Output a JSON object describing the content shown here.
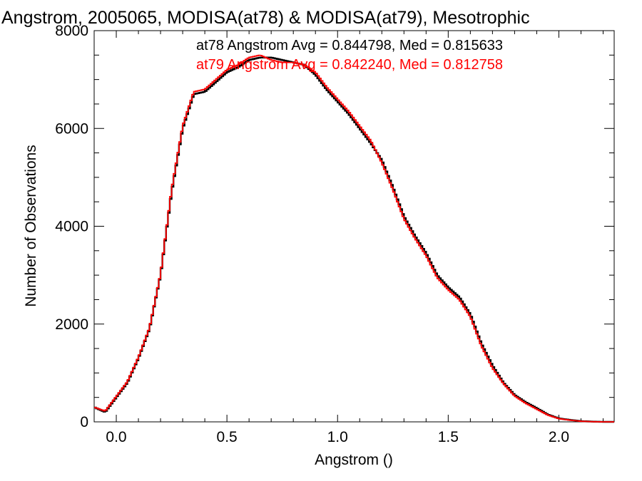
{
  "chart_data": {
    "type": "line",
    "title": "Angstrom, 2005065, MODISA(at78) & MODISA(at79), Mesotrophic",
    "xlabel": "Angstrom ()",
    "ylabel": "Number of Observations",
    "xlim": [
      -0.1,
      2.25
    ],
    "ylim": [
      0,
      8000
    ],
    "x_ticks": [
      0.0,
      0.5,
      1.0,
      1.5,
      2.0
    ],
    "x_tick_labels": [
      "0.0",
      "0.5",
      "1.0",
      "1.5",
      "2.0"
    ],
    "y_ticks": [
      0,
      2000,
      4000,
      6000,
      8000
    ],
    "y_tick_labels": [
      "0",
      "2000",
      "4000",
      "6000",
      "8000"
    ],
    "step": true,
    "grid": false,
    "annotations": [
      {
        "text": "at78 Angstrom Avg = 0.844798, Med = 0.815633",
        "color": "#000000"
      },
      {
        "text": "at79 Angstrom Avg = 0.842240, Med = 0.812758",
        "color": "#ff0000"
      }
    ],
    "series": [
      {
        "color": "#000000",
        "x": [
          -0.1,
          -0.05,
          0.0,
          0.05,
          0.1,
          0.15,
          0.2,
          0.25,
          0.3,
          0.35,
          0.4,
          0.45,
          0.5,
          0.55,
          0.6,
          0.65,
          0.7,
          0.75,
          0.8,
          0.85,
          0.9,
          0.95,
          1.0,
          1.05,
          1.1,
          1.15,
          1.2,
          1.25,
          1.3,
          1.35,
          1.4,
          1.45,
          1.5,
          1.55,
          1.6,
          1.65,
          1.7,
          1.75,
          1.8,
          1.85,
          1.9,
          1.95,
          2.0,
          2.05,
          2.1,
          2.15,
          2.2,
          2.25
        ],
        "values": [
          300,
          200,
          500,
          800,
          1300,
          1900,
          3000,
          4700,
          6000,
          6700,
          6750,
          6950,
          7150,
          7250,
          7400,
          7450,
          7450,
          7400,
          7350,
          7300,
          7100,
          6800,
          6550,
          6300,
          6000,
          5700,
          5350,
          4800,
          4200,
          3800,
          3450,
          3000,
          2750,
          2550,
          2200,
          1600,
          1150,
          800,
          550,
          400,
          280,
          150,
          70,
          40,
          15,
          5,
          0,
          0
        ]
      },
      {
        "color": "#ff0000",
        "x": [
          -0.1,
          -0.05,
          0.0,
          0.05,
          0.1,
          0.15,
          0.2,
          0.25,
          0.3,
          0.35,
          0.4,
          0.45,
          0.5,
          0.55,
          0.6,
          0.65,
          0.7,
          0.75,
          0.8,
          0.85,
          0.9,
          0.95,
          1.0,
          1.05,
          1.1,
          1.15,
          1.2,
          1.25,
          1.3,
          1.35,
          1.4,
          1.45,
          1.5,
          1.55,
          1.6,
          1.65,
          1.7,
          1.75,
          1.8,
          1.85,
          1.9,
          1.95,
          2.0,
          2.05,
          2.1,
          2.15,
          2.2,
          2.25
        ],
        "values": [
          300,
          220,
          520,
          820,
          1320,
          1920,
          3020,
          4750,
          6050,
          6750,
          6800,
          7000,
          7200,
          7300,
          7450,
          7500,
          7400,
          7350,
          7350,
          7300,
          7150,
          6850,
          6600,
          6350,
          6050,
          5750,
          5300,
          4750,
          4150,
          3750,
          3400,
          2950,
          2700,
          2500,
          2150,
          1550,
          1100,
          780,
          530,
          380,
          260,
          140,
          65,
          35,
          12,
          4,
          0,
          0
        ]
      }
    ]
  }
}
